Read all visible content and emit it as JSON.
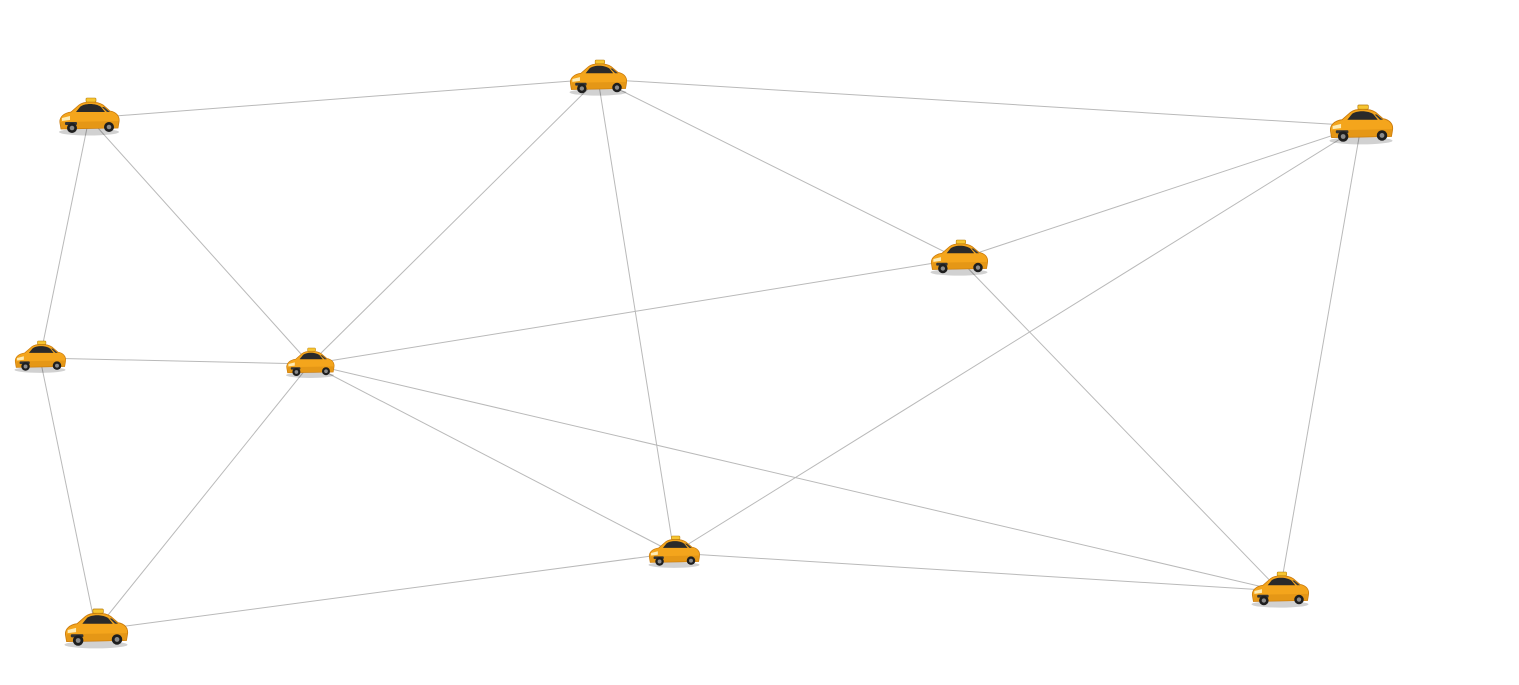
{
  "network": {
    "icon": "taxi-car-icon",
    "colors": {
      "edge": "#b9b9b9",
      "car_body": "#f4a51c",
      "car_body_dark": "#c9790a",
      "car_glass": "#2a2a2a",
      "taxi_sign": "#f7c531",
      "background": "#ffffff"
    },
    "nodes": [
      {
        "id": "n1",
        "label": ""
      },
      {
        "id": "n2",
        "label": ""
      },
      {
        "id": "n3",
        "label": ""
      },
      {
        "id": "n4",
        "label": ""
      },
      {
        "id": "n5",
        "label": ""
      },
      {
        "id": "n6",
        "label": ""
      },
      {
        "id": "n7",
        "label": ""
      },
      {
        "id": "n8",
        "label": ""
      },
      {
        "id": "n9",
        "label": ""
      },
      {
        "id": "n10",
        "label": ""
      }
    ],
    "edges": [
      [
        "n1",
        "n2"
      ],
      [
        "n1",
        "n4"
      ],
      [
        "n1",
        "n5"
      ],
      [
        "n2",
        "n3"
      ],
      [
        "n2",
        "n5"
      ],
      [
        "n2",
        "n6"
      ],
      [
        "n2",
        "n7"
      ],
      [
        "n3",
        "n6"
      ],
      [
        "n3",
        "n8"
      ],
      [
        "n3",
        "n9"
      ],
      [
        "n4",
        "n5"
      ],
      [
        "n4",
        "n10"
      ],
      [
        "n5",
        "n6"
      ],
      [
        "n5",
        "n7"
      ],
      [
        "n5",
        "n8"
      ],
      [
        "n5",
        "n10"
      ],
      [
        "n6",
        "n8"
      ],
      [
        "n7",
        "n8"
      ],
      [
        "n7",
        "n10"
      ],
      [
        "n8",
        "n9"
      ]
    ]
  }
}
